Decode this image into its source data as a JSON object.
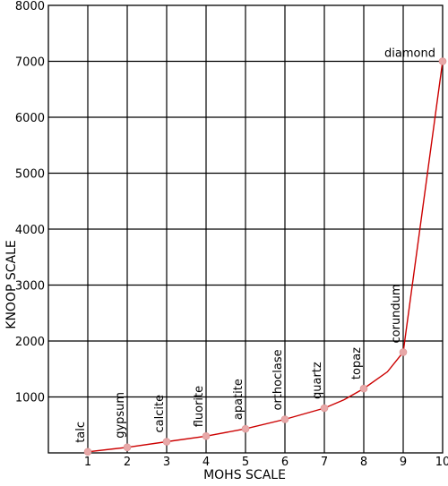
{
  "chart_data": {
    "type": "line",
    "title": "",
    "xlabel": "MOHS SCALE",
    "ylabel": "KNOOP SCALE",
    "xlim": [
      0,
      10
    ],
    "ylim": [
      0,
      8000
    ],
    "grid": true,
    "x_ticks": [
      "1",
      "2",
      "3",
      "4",
      "5",
      "6",
      "7",
      "8",
      "9",
      "10"
    ],
    "y_ticks": [
      "1000",
      "2000",
      "3000",
      "4000",
      "5000",
      "6000",
      "7000",
      "8000"
    ],
    "series_color": "#cc0000",
    "marker_color": "#e8a8a8",
    "points": [
      {
        "mineral": "talc",
        "mohs": 1,
        "knoop": 20
      },
      {
        "mineral": "gypsum",
        "mohs": 2,
        "knoop": 100
      },
      {
        "mineral": "calcite",
        "mohs": 3,
        "knoop": 200
      },
      {
        "mineral": "fluorite",
        "mohs": 4,
        "knoop": 300
      },
      {
        "mineral": "apatite",
        "mohs": 5,
        "knoop": 430
      },
      {
        "mineral": "orthoclase",
        "mohs": 6,
        "knoop": 600
      },
      {
        "mineral": "quartz",
        "mohs": 7,
        "knoop": 800
      },
      {
        "mineral": "topaz",
        "mohs": 8,
        "knoop": 1150
      },
      {
        "mineral": "corundum",
        "mohs": 9,
        "knoop": 1800
      },
      {
        "mineral": "diamond",
        "mohs": 10,
        "knoop": 7000
      }
    ],
    "curve": [
      [
        1,
        20
      ],
      [
        2,
        100
      ],
      [
        3,
        200
      ],
      [
        4,
        300
      ],
      [
        5,
        430
      ],
      [
        6,
        600
      ],
      [
        7,
        800
      ],
      [
        7.5,
        950
      ],
      [
        8,
        1150
      ],
      [
        8.6,
        1450
      ],
      [
        9,
        1800
      ],
      [
        10,
        7000
      ]
    ]
  }
}
